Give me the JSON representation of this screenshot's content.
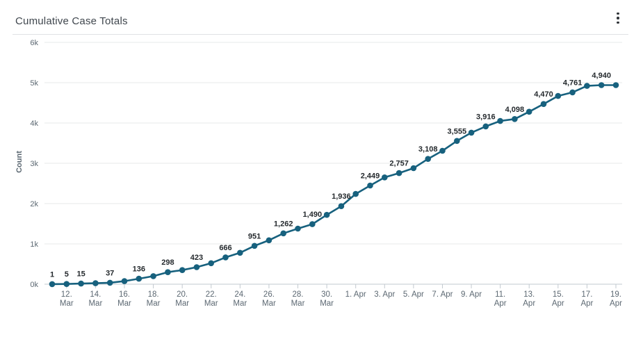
{
  "header": {
    "title": "Cumulative Case Totals",
    "menu_icon": "kebab-vertical-icon"
  },
  "chart_data": {
    "type": "line",
    "title": "Cumulative Case Totals",
    "xlabel": "",
    "ylabel": "Count",
    "ylim": [
      0,
      6000
    ],
    "y_tick_labels": [
      "0k",
      "1k",
      "2k",
      "3k",
      "4k",
      "5k",
      "6k"
    ],
    "grid": "horizontal",
    "legend_position": "none",
    "line_color": "#17617e",
    "marker_color": "#17617e",
    "data_label_color": "#24292d",
    "axis_text_color": "#5c6872",
    "grid_color": "#e7e8ea",
    "axis_line_color": "#c2c9cf",
    "x": [
      "11. Mar",
      "12. Mar",
      "13. Mar",
      "14. Mar",
      "15. Mar",
      "16. Mar",
      "17. Mar",
      "18. Mar",
      "19. Mar",
      "20. Mar",
      "21. Mar",
      "22. Mar",
      "23. Mar",
      "24. Mar",
      "25. Mar",
      "26. Mar",
      "27. Mar",
      "28. Mar",
      "29. Mar",
      "30. Mar",
      "31. Mar",
      "1. Apr",
      "2. Apr",
      "3. Apr",
      "4. Apr",
      "5. Apr",
      "6. Apr",
      "7. Apr",
      "8. Apr",
      "9. Apr",
      "10. Apr",
      "11. Apr",
      "12. Apr",
      "13. Apr",
      "14. Apr",
      "15. Apr",
      "16. Apr",
      "17. Apr",
      "18. Apr",
      "19. Apr"
    ],
    "values": [
      1,
      5,
      15,
      25,
      37,
      75,
      136,
      200,
      298,
      350,
      423,
      520,
      666,
      780,
      951,
      1090,
      1262,
      1380,
      1490,
      1720,
      1936,
      2240,
      2449,
      2650,
      2757,
      2880,
      3108,
      3310,
      3555,
      3760,
      3916,
      4050,
      4098,
      4280,
      4470,
      4670,
      4761,
      4920,
      4940,
      4940
    ],
    "point_labels": [
      "1",
      "5",
      "15",
      null,
      "37",
      null,
      "136",
      null,
      "298",
      null,
      "423",
      null,
      "666",
      null,
      "951",
      null,
      "1,262",
      null,
      "1,490",
      null,
      "1,936",
      null,
      "2,449",
      null,
      "2,757",
      null,
      "3,108",
      null,
      "3,555",
      null,
      "3,916",
      null,
      "4,098",
      null,
      "4,470",
      null,
      "4,761",
      null,
      "4,940",
      null
    ],
    "x_ticks": [
      {
        "index": 1,
        "lines": [
          "12.",
          "Mar"
        ]
      },
      {
        "index": 3,
        "lines": [
          "14.",
          "Mar"
        ]
      },
      {
        "index": 5,
        "lines": [
          "16.",
          "Mar"
        ]
      },
      {
        "index": 7,
        "lines": [
          "18.",
          "Mar"
        ]
      },
      {
        "index": 9,
        "lines": [
          "20.",
          "Mar"
        ]
      },
      {
        "index": 11,
        "lines": [
          "22.",
          "Mar"
        ]
      },
      {
        "index": 13,
        "lines": [
          "24.",
          "Mar"
        ]
      },
      {
        "index": 15,
        "lines": [
          "26.",
          "Mar"
        ]
      },
      {
        "index": 17,
        "lines": [
          "28.",
          "Mar"
        ]
      },
      {
        "index": 19,
        "lines": [
          "30.",
          "Mar"
        ]
      },
      {
        "index": 21,
        "lines": [
          "1. Apr"
        ]
      },
      {
        "index": 23,
        "lines": [
          "3. Apr"
        ]
      },
      {
        "index": 25,
        "lines": [
          "5. Apr"
        ]
      },
      {
        "index": 27,
        "lines": [
          "7. Apr"
        ]
      },
      {
        "index": 29,
        "lines": [
          "9. Apr"
        ]
      },
      {
        "index": 31,
        "lines": [
          "11.",
          "Apr"
        ]
      },
      {
        "index": 33,
        "lines": [
          "13.",
          "Apr"
        ]
      },
      {
        "index": 35,
        "lines": [
          "15.",
          "Apr"
        ]
      },
      {
        "index": 37,
        "lines": [
          "17.",
          "Apr"
        ]
      },
      {
        "index": 39,
        "lines": [
          "19.",
          "Apr"
        ]
      }
    ]
  }
}
